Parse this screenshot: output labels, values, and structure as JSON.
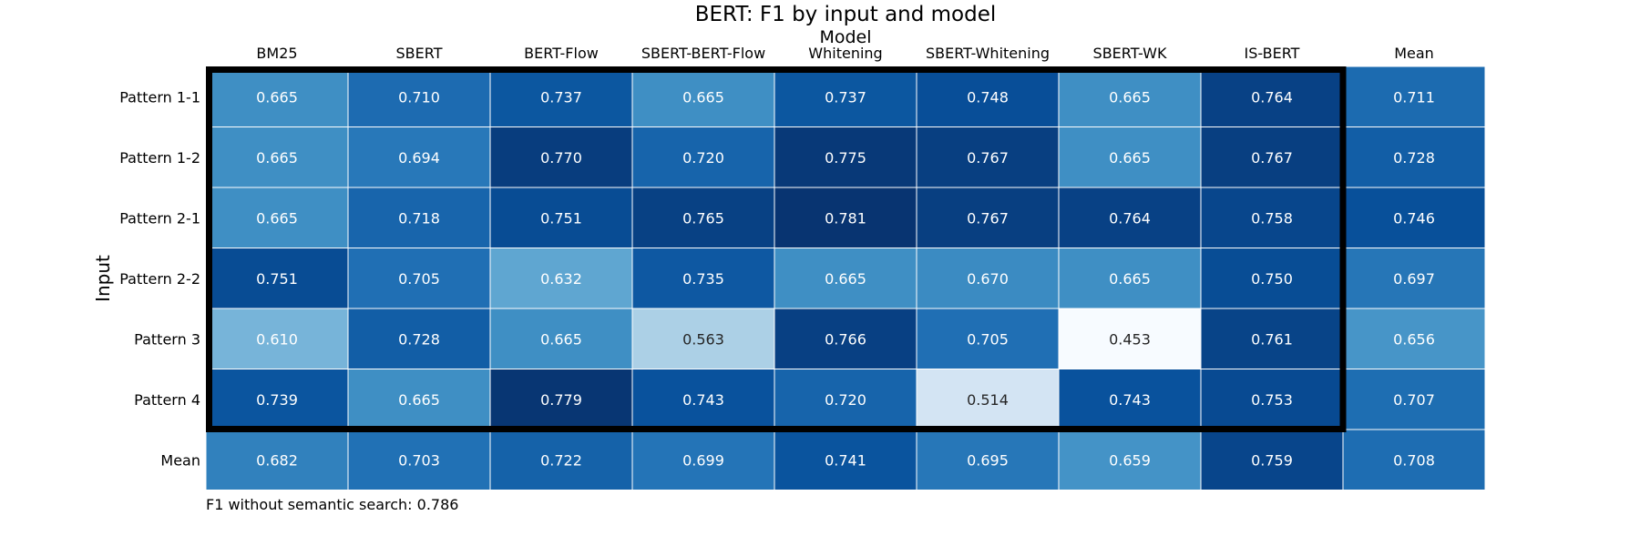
{
  "chart_data": {
    "type": "heatmap",
    "title": "BERT: F1 by input and model",
    "xlabel": "Model",
    "ylabel": "Input",
    "columns": [
      "BM25",
      "SBERT",
      "BERT-Flow",
      "SBERT-BERT-Flow",
      "Whitening",
      "SBERT-Whitening",
      "SBERT-WK",
      "IS-BERT",
      "Mean"
    ],
    "rows": [
      "Pattern 1-1",
      "Pattern 1-2",
      "Pattern 2-1",
      "Pattern 2-2",
      "Pattern 3",
      "Pattern 4",
      "Mean"
    ],
    "values": [
      [
        "0.665",
        "0.710",
        "0.737",
        "0.665",
        "0.737",
        "0.748",
        "0.665",
        "0.764",
        "0.711"
      ],
      [
        "0.665",
        "0.694",
        "0.770",
        "0.720",
        "0.775",
        "0.767",
        "0.665",
        "0.767",
        "0.728"
      ],
      [
        "0.665",
        "0.718",
        "0.751",
        "0.765",
        "0.781",
        "0.767",
        "0.764",
        "0.758",
        "0.746"
      ],
      [
        "0.751",
        "0.705",
        "0.632",
        "0.735",
        "0.665",
        "0.670",
        "0.665",
        "0.750",
        "0.697"
      ],
      [
        "0.610",
        "0.728",
        "0.665",
        "0.563",
        "0.766",
        "0.705",
        "0.453",
        "0.761",
        "0.656"
      ],
      [
        "0.739",
        "0.665",
        "0.779",
        "0.743",
        "0.720",
        "0.514",
        "0.743",
        "0.753",
        "0.707"
      ],
      [
        "0.682",
        "0.703",
        "0.722",
        "0.699",
        "0.741",
        "0.695",
        "0.659",
        "0.759",
        "0.708"
      ]
    ],
    "colormap": "Blues",
    "color_range": [
      0.453,
      0.786
    ],
    "highlight": "black outline around Pattern rows × model columns (excluding Mean row and column)",
    "footnote": "F1 without semantic search: 0.786"
  }
}
